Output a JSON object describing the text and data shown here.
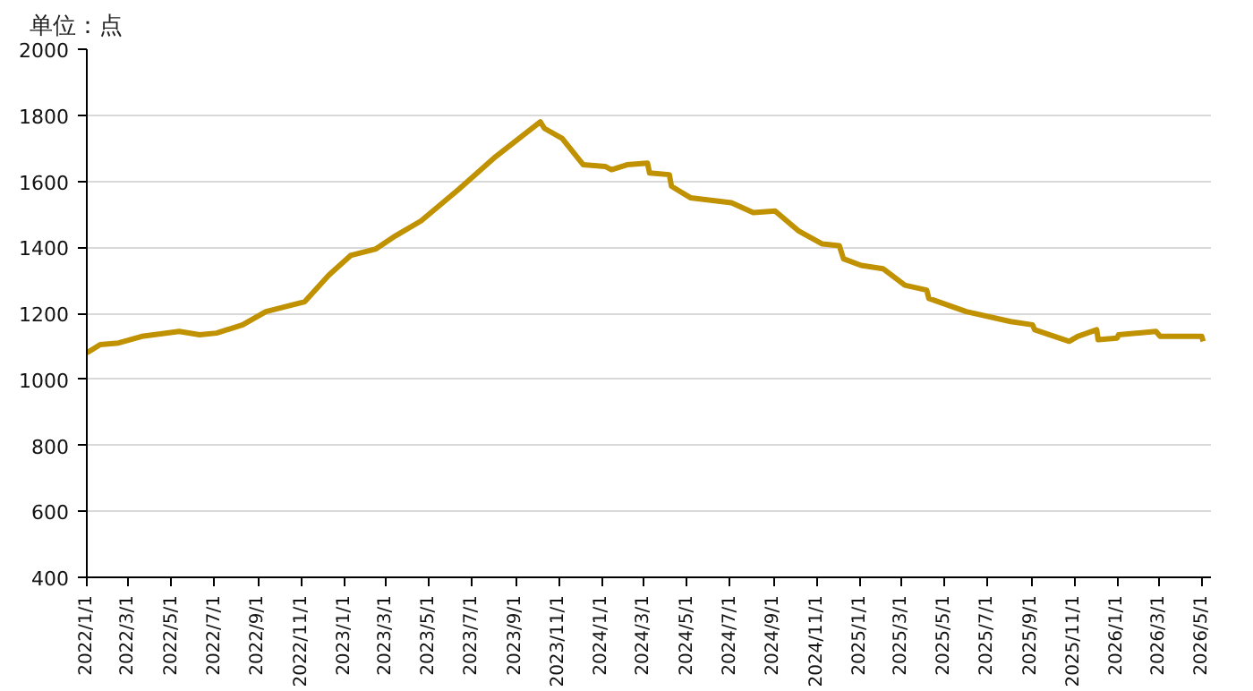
{
  "chart_data": {
    "type": "line",
    "ylabel": "单位：点",
    "x": [
      "2022-01-01",
      "2022-01-20",
      "2022-02-15",
      "2022-03-20",
      "2022-05-12",
      "2022-06-10",
      "2022-07-04",
      "2022-08-10",
      "2022-09-12",
      "2022-11-06",
      "2022-12-10",
      "2023-01-10",
      "2023-02-15",
      "2023-03-15",
      "2023-04-20",
      "2023-06-12",
      "2023-08-04",
      "2023-10-06",
      "2023-10-12",
      "2023-11-06",
      "2023-12-06",
      "2024-01-06",
      "2024-01-15",
      "2024-02-06",
      "2024-03-06",
      "2024-03-09",
      "2024-04-06",
      "2024-04-09",
      "2024-05-06",
      "2024-07-03",
      "2024-08-03",
      "2024-09-03",
      "2024-10-06",
      "2024-11-09",
      "2024-12-03",
      "2024-12-09",
      "2025-01-03",
      "2025-02-03",
      "2025-03-06",
      "2025-04-06",
      "2025-04-09",
      "2025-06-01",
      "2025-08-03",
      "2025-09-03",
      "2025-09-06",
      "2025-10-25",
      "2025-11-06",
      "2025-12-03",
      "2025-12-05",
      "2026-01-01",
      "2026-01-03",
      "2026-02-25",
      "2026-03-03",
      "2026-05-01",
      "2026-05-03"
    ],
    "series": [
      {
        "color": "#c09100",
        "values": [
          1080,
          1105,
          1110,
          1130,
          1145,
          1135,
          1140,
          1165,
          1205,
          1235,
          1315,
          1375,
          1395,
          1435,
          1480,
          1575,
          1675,
          1780,
          1760,
          1730,
          1650,
          1645,
          1635,
          1650,
          1655,
          1625,
          1620,
          1585,
          1550,
          1535,
          1505,
          1510,
          1450,
          1410,
          1405,
          1365,
          1345,
          1335,
          1285,
          1270,
          1245,
          1205,
          1175,
          1165,
          1150,
          1115,
          1130,
          1150,
          1120,
          1125,
          1135,
          1145,
          1130,
          1130,
          1115
        ]
      }
    ],
    "xlim": [
      "2022-01-01",
      "2026-05-14"
    ],
    "xticks": [
      {
        "value": "2022-01-01",
        "label": "2022/1/1"
      },
      {
        "value": "2022-03-01",
        "label": "2022/3/1"
      },
      {
        "value": "2022-05-01",
        "label": "2022/5/1"
      },
      {
        "value": "2022-07-01",
        "label": "2022/7/1"
      },
      {
        "value": "2022-09-01",
        "label": "2022/9/1"
      },
      {
        "value": "2022-11-01",
        "label": "2022/11/1"
      },
      {
        "value": "2023-01-01",
        "label": "2023/1/1"
      },
      {
        "value": "2023-03-01",
        "label": "2023/3/1"
      },
      {
        "value": "2023-05-01",
        "label": "2023/5/1"
      },
      {
        "value": "2023-07-01",
        "label": "2023/7/1"
      },
      {
        "value": "2023-09-01",
        "label": "2023/9/1"
      },
      {
        "value": "2023-11-01",
        "label": "2023/11/1"
      },
      {
        "value": "2024-01-01",
        "label": "2024/1/1"
      },
      {
        "value": "2024-03-01",
        "label": "2024/3/1"
      },
      {
        "value": "2024-05-01",
        "label": "2024/5/1"
      },
      {
        "value": "2024-07-01",
        "label": "2024/7/1"
      },
      {
        "value": "2024-09-01",
        "label": "2024/9/1"
      },
      {
        "value": "2024-11-01",
        "label": "2024/11/1"
      },
      {
        "value": "2025-01-01",
        "label": "2025/1/1"
      },
      {
        "value": "2025-03-01",
        "label": "2025/3/1"
      },
      {
        "value": "2025-05-01",
        "label": "2025/5/1"
      },
      {
        "value": "2025-07-01",
        "label": "2025/7/1"
      },
      {
        "value": "2025-09-01",
        "label": "2025/9/1"
      },
      {
        "value": "2025-11-01",
        "label": "2025/11/1"
      },
      {
        "value": "2026-01-01",
        "label": "2026/1/1"
      },
      {
        "value": "2026-03-01",
        "label": "2026/3/1"
      },
      {
        "value": "2026-05-01",
        "label": "2026/5/1"
      }
    ],
    "ylim": [
      400,
      2000
    ],
    "yticks": [
      400,
      600,
      800,
      1000,
      1200,
      1400,
      1600,
      1800,
      2000
    ],
    "grid": "y",
    "marker": "none",
    "line_style": "solid"
  }
}
